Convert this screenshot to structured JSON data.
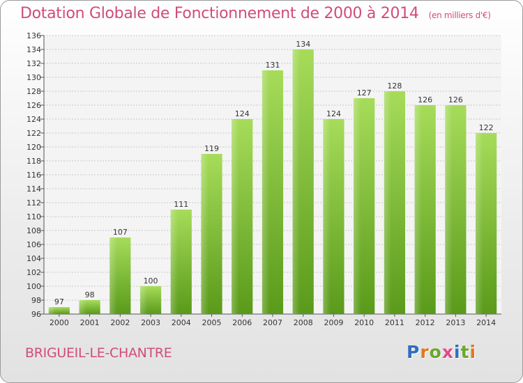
{
  "title": "Dotation Globale de Fonctionnement de 2000 à 2014",
  "subtitle": "(en milliers d'€)",
  "commune": "BRIGUEIL-LE-CHANTRE",
  "logo": {
    "text": "Proxiti",
    "letter_colors": [
      "#2f6fbf",
      "#e07820",
      "#6aa82c",
      "#e34a8a",
      "#2f6fbf",
      "#6aa82c",
      "#e07820"
    ]
  },
  "colors": {
    "bar_light": "#a6dc5a",
    "bar_dark": "#5a9a1a",
    "text": "#d04c7a"
  },
  "chart_data": {
    "type": "bar",
    "title": "Dotation Globale de Fonctionnement de 2000 à 2014",
    "subtitle": "(en milliers d'€)",
    "categories": [
      "2000",
      "2001",
      "2002",
      "2003",
      "2004",
      "2005",
      "2006",
      "2007",
      "2008",
      "2009",
      "2010",
      "2011",
      "2012",
      "2013",
      "2014"
    ],
    "values": [
      97,
      98,
      107,
      100,
      111,
      119,
      124,
      131,
      134,
      124,
      127,
      128,
      126,
      126,
      122
    ],
    "ylim": [
      96,
      136
    ],
    "ytick_step": 2,
    "grid": true
  }
}
